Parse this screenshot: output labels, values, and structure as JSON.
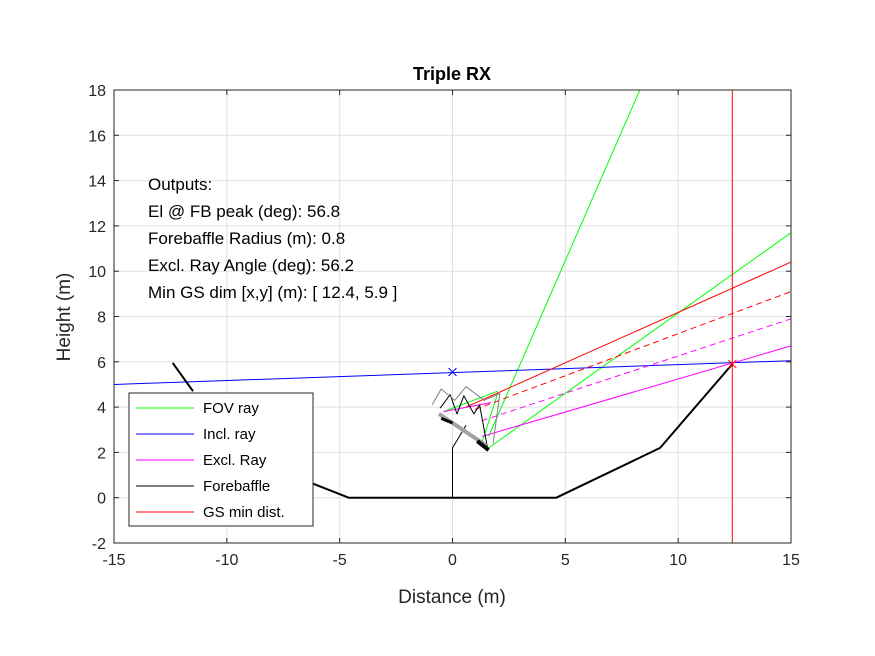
{
  "chart_data": {
    "type": "line",
    "title": "Triple RX",
    "xlabel": "Distance (m)",
    "ylabel": "Height (m)",
    "xlim": [
      -15,
      15
    ],
    "ylim": [
      -2,
      18
    ],
    "xticks": [
      -15,
      -10,
      -5,
      0,
      5,
      10,
      15
    ],
    "yticks": [
      -2,
      0,
      2,
      4,
      6,
      8,
      10,
      12,
      14,
      16,
      18
    ],
    "grid": true,
    "legend_position": "bottom-left",
    "legend": [
      {
        "label": "FOV ray",
        "color": "#00ff00"
      },
      {
        "label": "Incl. ray",
        "color": "#0000ff"
      },
      {
        "label": "Excl. Ray",
        "color": "#ff00ff"
      },
      {
        "label": "Forebaffle",
        "color": "#000000"
      },
      {
        "label": "GS min dist.",
        "color": "#ff0000"
      }
    ],
    "annotation": [
      "Outputs:",
      "El @ FB peak (deg): 56.8",
      "Forebaffle Radius (m): 0.8",
      "Excl. Ray Angle (deg): 56.2",
      "Min GS dim [x,y] (m): [ 12.4, 5.9 ]"
    ],
    "series": [
      {
        "role": "fov",
        "color": "#00ff00",
        "style": "solid",
        "x": [
          1.6,
          8.3
        ],
        "y": [
          2.7,
          18.0
        ]
      },
      {
        "role": "fov",
        "color": "#00ff00",
        "style": "solid",
        "x": [
          1.6,
          15.0
        ],
        "y": [
          2.2,
          11.7
        ]
      },
      {
        "role": "fov",
        "color": "#00ff00",
        "style": "solid",
        "x": [
          -0.4,
          2.0
        ],
        "y": [
          3.8,
          4.7
        ]
      },
      {
        "role": "fov",
        "color": "#00ff00",
        "style": "solid",
        "x": [
          1.3,
          2.0
        ],
        "y": [
          2.4,
          4.6
        ]
      },
      {
        "role": "incl",
        "color": "#0000ff",
        "style": "solid",
        "x": [
          -15.0,
          15.0
        ],
        "y": [
          5.0,
          6.05
        ]
      },
      {
        "role": "excl",
        "color": "#ff00ff",
        "style": "solid",
        "x": [
          1.3,
          15.0
        ],
        "y": [
          2.7,
          6.7
        ]
      },
      {
        "role": "excl",
        "color": "#ff00ff",
        "style": "dashed",
        "x": [
          1.3,
          15.0
        ],
        "y": [
          3.4,
          7.9
        ]
      },
      {
        "role": "excl",
        "color": "#ff00ff",
        "style": "solid",
        "x": [
          -0.4,
          1.7
        ],
        "y": [
          3.8,
          4.2
        ]
      },
      {
        "role": "gs",
        "color": "#ff0000",
        "style": "solid",
        "x": [
          0.6,
          15.0
        ],
        "y": [
          4.0,
          10.4
        ]
      },
      {
        "role": "gs",
        "color": "#ff0000",
        "style": "dashed",
        "x": [
          1.0,
          15.0
        ],
        "y": [
          3.9,
          9.1
        ]
      },
      {
        "role": "gs",
        "color": "#ff0000",
        "style": "solid",
        "x": [
          12.4,
          12.4
        ],
        "y": [
          -2.0,
          18.0
        ]
      },
      {
        "role": "forebaffle",
        "color": "#000000",
        "style": "solid",
        "width": 2,
        "x": [
          -12.4,
          -11.5
        ],
        "y": [
          5.95,
          4.7
        ]
      },
      {
        "role": "forebaffle",
        "color": "#000000",
        "style": "solid",
        "width": 2,
        "x": [
          -6.9,
          -4.6,
          4.6,
          9.2,
          12.4
        ],
        "y": [
          0.9,
          0.0,
          0.0,
          2.2,
          5.9
        ]
      },
      {
        "role": "mount",
        "color": "#000000",
        "style": "solid",
        "width": 1,
        "x": [
          0.0,
          0.0,
          0.6
        ],
        "y": [
          0.0,
          2.2,
          3.2
        ]
      },
      {
        "role": "instrument",
        "color": "#000000",
        "style": "solid",
        "width": 1,
        "x": [
          -0.55,
          -0.1,
          0.2,
          0.5,
          0.95,
          1.2,
          1.55
        ],
        "y": [
          3.95,
          4.55,
          3.7,
          4.5,
          3.7,
          4.1,
          2.2
        ]
      },
      {
        "role": "instrument",
        "color": "#808080",
        "style": "solid",
        "width": 1,
        "x": [
          -0.9,
          -0.5,
          0.1,
          0.6,
          1.4,
          2.1,
          1.8
        ],
        "y": [
          4.1,
          4.8,
          4.3,
          4.9,
          4.3,
          4.6,
          2.4
        ]
      },
      {
        "role": "instrument",
        "color": "#a0a0a0",
        "style": "solid",
        "width": 4,
        "x": [
          -0.6,
          1.5
        ],
        "y": [
          3.7,
          2.3
        ]
      },
      {
        "role": "instrument",
        "color": "#000000",
        "style": "solid",
        "width": 3,
        "x": [
          -0.5,
          0.0
        ],
        "y": [
          3.5,
          3.3
        ]
      },
      {
        "role": "instrument",
        "color": "#000000",
        "style": "solid",
        "width": 4,
        "x": [
          1.1,
          1.6
        ],
        "y": [
          2.5,
          2.1
        ]
      }
    ],
    "markers": [
      {
        "x": 0.0,
        "y": 5.55,
        "symbol": "x",
        "color": "#0000ff"
      },
      {
        "x": 12.4,
        "y": 5.9,
        "symbol": "x",
        "color": "#ff0000"
      }
    ]
  }
}
